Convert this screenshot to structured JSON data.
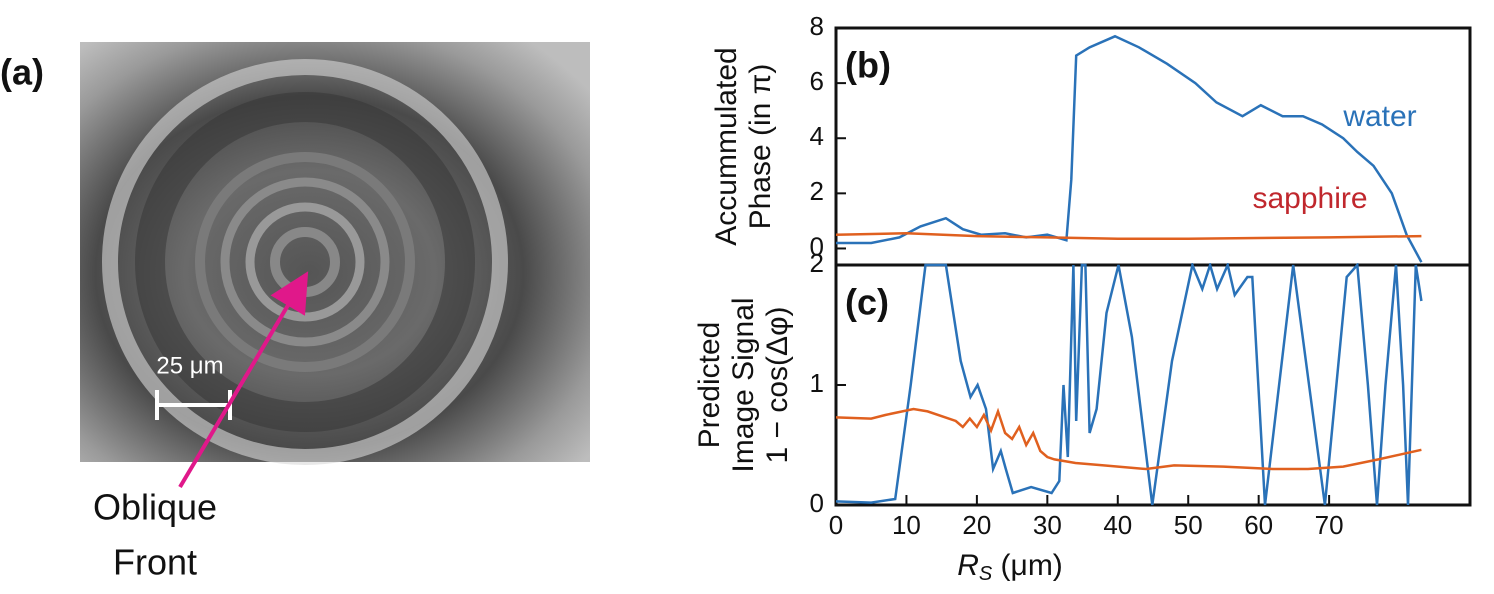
{
  "image_panel": {
    "label": "(a)",
    "scale_bar": "25 μm",
    "annotation": [
      "Oblique",
      "Front"
    ]
  },
  "chart_data": [
    {
      "type": "line",
      "label": "(b)",
      "ylabel": [
        "Accummulated",
        "Phase (in π)"
      ],
      "xlim": [
        0,
        90
      ],
      "ylim": [
        -0.6,
        8
      ],
      "yticks": [
        0,
        2,
        4,
        6,
        8
      ],
      "series": [
        {
          "name": "water",
          "color": "#2a72b8",
          "label_color": "#2a72b8",
          "x": [
            0,
            5,
            9,
            12,
            15.6,
            18,
            20.6,
            24,
            27,
            30,
            32.7,
            33.4,
            34.1,
            36,
            39.6,
            43,
            47,
            51,
            54,
            57.7,
            60.3,
            63.4,
            66.3,
            69,
            72,
            74,
            76.3,
            78.9,
            81,
            83.1
          ],
          "values": [
            0.2,
            0.2,
            0.4,
            0.8,
            1.1,
            0.7,
            0.5,
            0.55,
            0.4,
            0.5,
            0.3,
            2.5,
            7.0,
            7.3,
            7.7,
            7.3,
            6.7,
            6.0,
            5.3,
            4.8,
            5.2,
            4.8,
            4.8,
            4.5,
            4.0,
            3.5,
            3.0,
            2.0,
            0.5,
            -0.5
          ]
        },
        {
          "name": "sapphire",
          "color": "#e0601f",
          "label_color": "#c0272d",
          "x": [
            0,
            10,
            20,
            30,
            40,
            50,
            60,
            70,
            83.1
          ],
          "values": [
            0.5,
            0.55,
            0.45,
            0.4,
            0.35,
            0.35,
            0.38,
            0.4,
            0.45
          ]
        }
      ]
    },
    {
      "type": "line",
      "label": "(c)",
      "ylabel": [
        "Predicted",
        "Image Signal",
        "1 − cos(Δφ)"
      ],
      "xlabel": [
        "R",
        "S",
        " (μm)"
      ],
      "xlim": [
        0,
        90
      ],
      "xticks": [
        0,
        10,
        20,
        30,
        40,
        50,
        60,
        70
      ],
      "ylim": [
        0,
        2
      ],
      "yticks": [
        0,
        1,
        2
      ],
      "series": [
        {
          "name": "water",
          "color": "#2a72b8",
          "x": [
            0,
            5,
            8.4,
            10.6,
            12.7,
            15.6,
            17.7,
            19.1,
            20.1,
            21.3,
            22.3,
            23.4,
            24.1,
            25.1,
            27.7,
            30.6,
            31.7,
            32.3,
            32.9,
            33.7,
            34.1,
            34.9,
            35.4,
            36,
            37,
            38.4,
            40.1,
            42,
            44.9,
            47.7,
            50.6,
            52,
            53.1,
            54.1,
            55.6,
            56.6,
            58.4,
            59.1,
            60.9,
            64.9,
            69.4,
            72.5,
            74,
            75.5,
            76.8,
            78,
            79.5,
            80.5,
            81.2,
            82.3,
            83.1
          ],
          "values": [
            0.03,
            0.02,
            0.05,
            1.0,
            2.0,
            2.0,
            1.2,
            0.9,
            1.0,
            0.8,
            0.3,
            0.45,
            0.3,
            0.1,
            0.15,
            0.1,
            0.2,
            1.0,
            0.4,
            2.0,
            0.7,
            2.0,
            2.0,
            0.6,
            0.8,
            1.6,
            2.0,
            1.4,
            0.0,
            1.2,
            2.0,
            1.8,
            2.0,
            1.8,
            2.0,
            1.75,
            1.9,
            1.9,
            0.0,
            2.0,
            0.0,
            1.9,
            2.0,
            1.0,
            0.0,
            1.0,
            2.0,
            1.0,
            0.0,
            2.0,
            1.7
          ]
        },
        {
          "name": "sapphire",
          "color": "#e0601f",
          "x": [
            0,
            5,
            7,
            11,
            13,
            17,
            18,
            19,
            20,
            21,
            22,
            23,
            24,
            25,
            26,
            27,
            28,
            29,
            30,
            31,
            34,
            38,
            44,
            48,
            55,
            62,
            67,
            72,
            77,
            83.1
          ],
          "values": [
            0.73,
            0.72,
            0.75,
            0.8,
            0.78,
            0.7,
            0.65,
            0.72,
            0.65,
            0.75,
            0.62,
            0.78,
            0.6,
            0.55,
            0.65,
            0.5,
            0.6,
            0.45,
            0.4,
            0.38,
            0.35,
            0.33,
            0.3,
            0.33,
            0.32,
            0.3,
            0.3,
            0.32,
            0.38,
            0.46
          ]
        }
      ]
    }
  ]
}
